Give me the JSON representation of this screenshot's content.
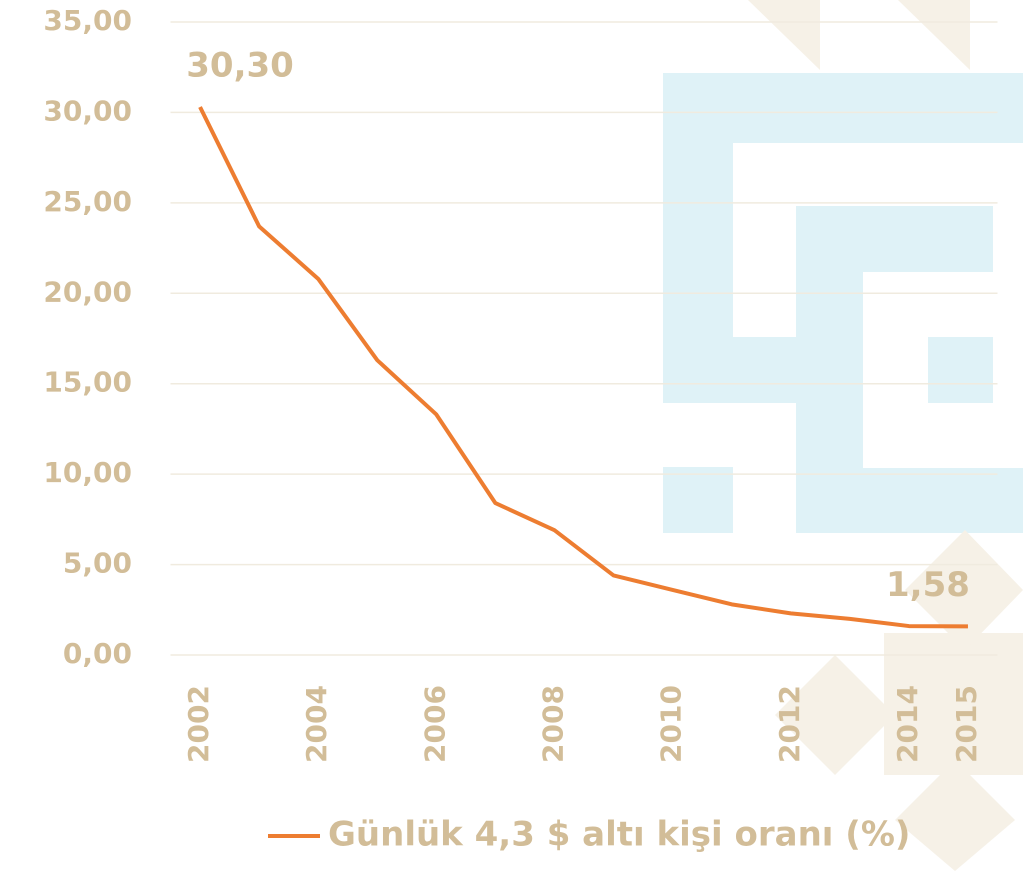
{
  "chart_data": {
    "type": "line",
    "x": [
      2002,
      2003,
      2004,
      2005,
      2006,
      2007,
      2008,
      2009,
      2010,
      2011,
      2012,
      2013,
      2014,
      2015
    ],
    "series": [
      {
        "name": "Günlük 4,3 $ altı kişi oranı (%)",
        "color": "#ed7d31",
        "values": [
          30.3,
          23.7,
          20.8,
          16.3,
          13.3,
          8.4,
          6.9,
          4.4,
          3.6,
          2.8,
          2.3,
          2.0,
          1.6,
          1.58
        ],
        "value_labels": [
          "30,30",
          null,
          null,
          null,
          null,
          null,
          null,
          null,
          null,
          null,
          null,
          null,
          null,
          "1,58"
        ]
      }
    ],
    "xlim": [
      2001.5,
      2015.5
    ],
    "xticks": [
      2002,
      2004,
      2006,
      2008,
      2010,
      2012,
      2014,
      2015
    ],
    "ylim": [
      0,
      35
    ],
    "yticks": [
      {
        "value": 0,
        "label": "0,00"
      },
      {
        "value": 5,
        "label": "5,00"
      },
      {
        "value": 10,
        "label": "10,00"
      },
      {
        "value": 15,
        "label": "15,00"
      },
      {
        "value": 20,
        "label": "20,00"
      },
      {
        "value": 25,
        "label": "25,00"
      },
      {
        "value": 30,
        "label": "30,00"
      },
      {
        "value": 35,
        "label": "35,00"
      }
    ],
    "grid": true,
    "legend": "bottom"
  }
}
